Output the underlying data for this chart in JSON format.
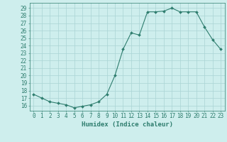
{
  "x": [
    0,
    1,
    2,
    3,
    4,
    5,
    6,
    7,
    8,
    9,
    10,
    11,
    12,
    13,
    14,
    15,
    16,
    17,
    18,
    19,
    20,
    21,
    22,
    23
  ],
  "y": [
    17.5,
    17.0,
    16.5,
    16.3,
    16.1,
    15.7,
    15.9,
    16.1,
    16.5,
    17.5,
    20.0,
    23.5,
    25.7,
    25.4,
    28.5,
    28.5,
    28.6,
    29.0,
    28.5,
    28.5,
    28.5,
    26.5,
    24.8,
    23.5
  ],
  "line_color": "#2e7d6e",
  "marker": "D",
  "marker_size": 2.0,
  "bg_color": "#ceeeed",
  "grid_color": "#aad4d4",
  "xlabel": "Humidex (Indice chaleur)",
  "xlim": [
    -0.5,
    23.5
  ],
  "ylim": [
    15.3,
    29.7
  ],
  "yticks": [
    16,
    17,
    18,
    19,
    20,
    21,
    22,
    23,
    24,
    25,
    26,
    27,
    28,
    29
  ],
  "xticks": [
    0,
    1,
    2,
    3,
    4,
    5,
    6,
    7,
    8,
    9,
    10,
    11,
    12,
    13,
    14,
    15,
    16,
    17,
    18,
    19,
    20,
    21,
    22,
    23
  ],
  "xtick_labels": [
    "0",
    "1",
    "2",
    "3",
    "4",
    "5",
    "6",
    "7",
    "8",
    "9",
    "10",
    "11",
    "12",
    "13",
    "14",
    "15",
    "16",
    "17",
    "18",
    "19",
    "20",
    "21",
    "22",
    "23"
  ],
  "tick_color": "#2e7d6e",
  "label_fontsize": 6.5,
  "tick_fontsize": 5.5
}
